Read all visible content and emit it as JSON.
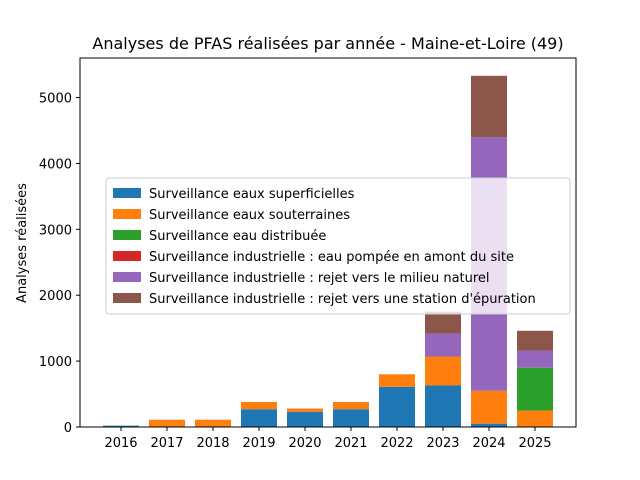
{
  "chart_data": {
    "type": "bar",
    "stacked": true,
    "title": "Analyses de PFAS réalisées par année - Maine-et-Loire (49)",
    "xlabel": "",
    "ylabel": "Analyses réalisées",
    "categories": [
      "2016",
      "2017",
      "2018",
      "2019",
      "2020",
      "2021",
      "2022",
      "2023",
      "2024",
      "2025"
    ],
    "ylim": [
      0,
      5600
    ],
    "yticks": [
      0,
      1000,
      2000,
      3000,
      4000,
      5000
    ],
    "legend_position": "center-right",
    "series": [
      {
        "name": "Surveillance eaux superficielles",
        "color": "#1f77b4",
        "values": [
          20,
          0,
          0,
          270,
          230,
          270,
          610,
          630,
          50,
          0
        ]
      },
      {
        "name": "Surveillance eaux souterraines",
        "color": "#ff7f0e",
        "values": [
          0,
          110,
          110,
          110,
          50,
          110,
          190,
          440,
          500,
          250
        ]
      },
      {
        "name": "Surveillance eau distribuée",
        "color": "#2ca02c",
        "values": [
          0,
          0,
          0,
          0,
          0,
          0,
          0,
          0,
          0,
          650
        ]
      },
      {
        "name": "Surveillance industrielle : eau pompée en amont du site",
        "color": "#d62728",
        "values": [
          0,
          0,
          0,
          0,
          0,
          0,
          0,
          0,
          0,
          0
        ]
      },
      {
        "name": "Surveillance industrielle : rejet vers le milieu naturel",
        "color": "#9467bd",
        "values": [
          0,
          0,
          0,
          0,
          0,
          0,
          0,
          350,
          3850,
          260
        ]
      },
      {
        "name": "Surveillance industrielle : rejet vers une station d'épuration",
        "color": "#8c564b",
        "values": [
          0,
          0,
          0,
          0,
          0,
          0,
          0,
          330,
          930,
          300
        ]
      }
    ]
  }
}
